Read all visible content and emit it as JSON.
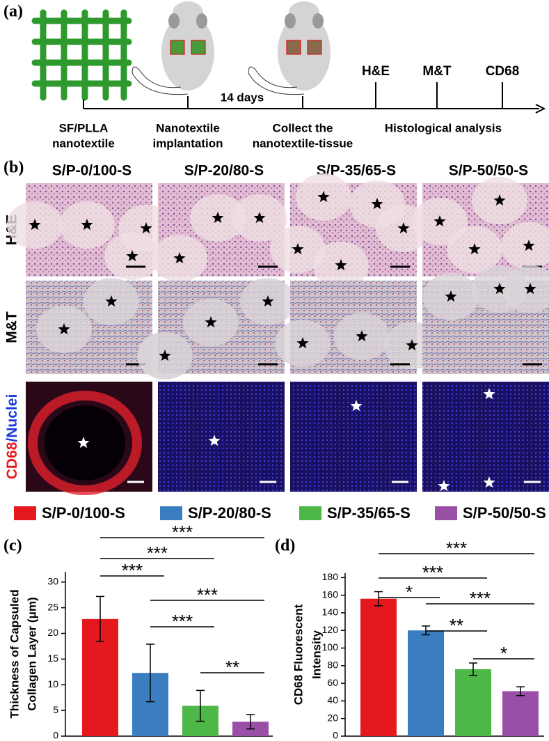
{
  "panel_a": {
    "label": "(a)",
    "duration": "14 days",
    "steps": [
      {
        "lines": [
          "SF/PLLA",
          "nanotextile"
        ]
      },
      {
        "lines": [
          "Nanotextile",
          "implantation"
        ]
      },
      {
        "lines": [
          "Collect the",
          "nanotextile-tissue"
        ]
      },
      {
        "lines": [
          "Histological analysis"
        ]
      }
    ],
    "analyses": [
      "H&E",
      "M&T",
      "CD68"
    ]
  },
  "panel_b": {
    "label": "(b)",
    "columns": [
      "S/P-0/100-S",
      "S/P-20/80-S",
      "S/P-35/65-S",
      "S/P-50/50-S"
    ],
    "rows": [
      "H&E",
      "M&T"
    ],
    "stain_row": {
      "marker": "CD68",
      "counter": "/Nuclei"
    }
  },
  "legend": {
    "items": [
      {
        "name": "S/P-0/100-S",
        "color": "#e5191d"
      },
      {
        "name": "S/P-20/80-S",
        "color": "#3a7dc0"
      },
      {
        "name": "S/P-35/65-S",
        "color": "#4db748"
      },
      {
        "name": "S/P-50/50-S",
        "color": "#9a4fa6"
      }
    ]
  },
  "chart_data": [
    {
      "type": "bar",
      "label": "(c)",
      "ylabel": [
        "Thickness of Capsuled",
        "Collagen Layer (μm)"
      ],
      "values": [
        22.8,
        12.3,
        5.9,
        2.8
      ],
      "errors": [
        4.4,
        5.6,
        3.0,
        1.4
      ],
      "ylim": [
        0,
        32
      ],
      "yticks": [
        0,
        5,
        10,
        15,
        20,
        25,
        30
      ],
      "significance": [
        {
          "from": 0,
          "to": 3,
          "label": "***"
        },
        {
          "from": 0,
          "to": 2,
          "label": "***"
        },
        {
          "from": 0,
          "to": 1,
          "label": "***"
        },
        {
          "from": 1,
          "to": 3,
          "label": "***"
        },
        {
          "from": 1,
          "to": 2,
          "label": "***"
        },
        {
          "from": 2,
          "to": 3,
          "label": "**"
        }
      ]
    },
    {
      "type": "bar",
      "label": "(d)",
      "ylabel": [
        "CD68 Fluorescent",
        "Intensity"
      ],
      "values": [
        156,
        120,
        76,
        51
      ],
      "errors": [
        8,
        5,
        7,
        5
      ],
      "ylim": [
        0,
        185
      ],
      "yticks": [
        0,
        20,
        40,
        60,
        80,
        100,
        120,
        140,
        160,
        180
      ],
      "significance": [
        {
          "from": 0,
          "to": 3,
          "label": "***"
        },
        {
          "from": 0,
          "to": 2,
          "label": "***"
        },
        {
          "from": 0,
          "to": 1,
          "label": "*"
        },
        {
          "from": 1,
          "to": 3,
          "label": "***"
        },
        {
          "from": 1,
          "to": 2,
          "label": "**"
        },
        {
          "from": 2,
          "to": 3,
          "label": "*"
        }
      ]
    }
  ]
}
